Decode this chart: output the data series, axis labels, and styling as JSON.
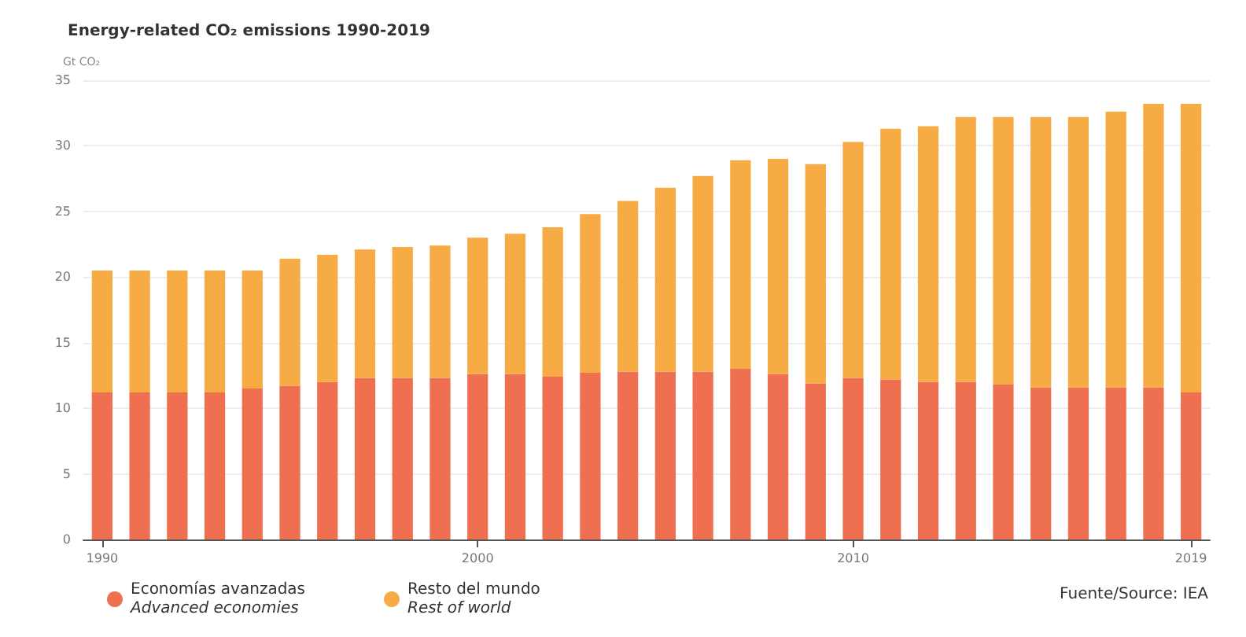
{
  "chart_data": {
    "type": "bar",
    "title": "Energy-related CO₂ emissions 1990-2019",
    "ylabel": "Gt CO₂",
    "stacked": true,
    "categories": [
      "1990",
      null,
      null,
      null,
      null,
      null,
      null,
      null,
      null,
      null,
      "2000",
      null,
      null,
      null,
      null,
      null,
      null,
      null,
      null,
      null,
      "2010",
      null,
      null,
      null,
      null,
      null,
      null,
      null,
      null,
      "2019"
    ],
    "series": [
      {
        "name": "Economías avanzadas\nAdvanced economies",
        "color": "#ee7050",
        "values": [
          11.2,
          11.2,
          11.2,
          11.2,
          11.5,
          11.7,
          12.0,
          12.3,
          12.3,
          12.3,
          12.6,
          12.6,
          12.4,
          12.7,
          12.8,
          12.8,
          12.8,
          13.0,
          12.6,
          11.9,
          12.3,
          12.2,
          12.0,
          12.0,
          11.8,
          11.6,
          11.6,
          11.6,
          11.6,
          11.2
        ]
      },
      {
        "name": "Resto del mundo\nRest of world",
        "color": "#f7ab45",
        "values": [
          9.3,
          9.3,
          9.3,
          9.3,
          9.0,
          9.7,
          9.7,
          9.8,
          10.0,
          10.1,
          10.4,
          10.7,
          11.4,
          12.1,
          13.0,
          14.0,
          14.9,
          15.9,
          16.4,
          16.7,
          18.0,
          19.1,
          19.5,
          20.2,
          20.4,
          20.6,
          20.6,
          21.0,
          21.6,
          22.0
        ]
      }
    ],
    "ylim": [
      0,
      35
    ],
    "yticks": [
      0,
      5,
      10,
      15,
      20,
      25,
      30,
      35
    ],
    "grid": "y",
    "legend": "bottom left",
    "annotations": [
      "Fuente/Source: IEA"
    ]
  }
}
